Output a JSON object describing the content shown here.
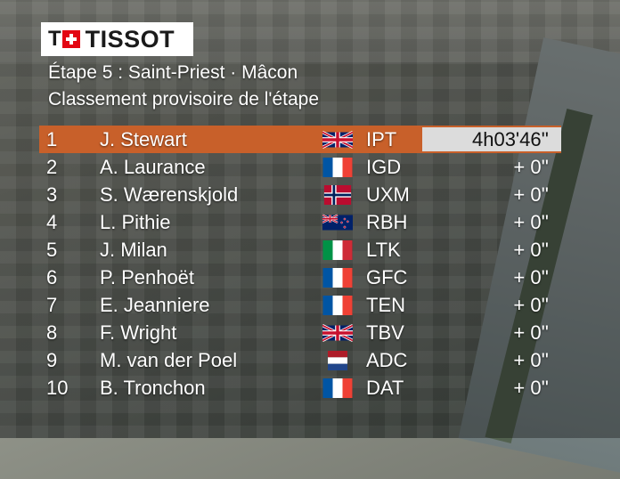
{
  "logo": {
    "mark": "T",
    "brand": "TISSOT"
  },
  "stage": {
    "title": "Étape 5 : Saint-Priest · Mâcon",
    "subtitle": "Classement provisoire de l'étape"
  },
  "colors": {
    "leader_row": "#c8602a",
    "time_box": "#dcdcdc"
  },
  "rows": [
    {
      "rank": "1",
      "name": "J. Stewart",
      "flag": "gb-flag-icon",
      "team": "IPT",
      "time": "4h03'46''"
    },
    {
      "rank": "2",
      "name": "A. Laurance",
      "flag": "fr-flag-icon",
      "team": "IGD",
      "time": "+ 0''"
    },
    {
      "rank": "3",
      "name": "S. Wærenskjold",
      "flag": "no-flag-icon",
      "team": "UXM",
      "time": "+ 0''"
    },
    {
      "rank": "4",
      "name": "L. Pithie",
      "flag": "nz-flag-icon",
      "team": "RBH",
      "time": "+ 0''"
    },
    {
      "rank": "5",
      "name": "J. Milan",
      "flag": "it-flag-icon",
      "team": "LTK",
      "time": "+ 0''"
    },
    {
      "rank": "6",
      "name": "P. Penhoët",
      "flag": "fr-flag-icon",
      "team": "GFC",
      "time": "+ 0''"
    },
    {
      "rank": "7",
      "name": "E. Jeanniere",
      "flag": "fr-flag-icon",
      "team": "TEN",
      "time": "+ 0''"
    },
    {
      "rank": "8",
      "name": "F. Wright",
      "flag": "gb-flag-icon",
      "team": "TBV",
      "time": "+ 0''"
    },
    {
      "rank": "9",
      "name": "M. van der Poel",
      "flag": "nl-flag-icon",
      "team": "ADC",
      "time": "+ 0''"
    },
    {
      "rank": "10",
      "name": "B. Tronchon",
      "flag": "fr-flag-icon",
      "team": "DAT",
      "time": "+ 0''"
    }
  ]
}
